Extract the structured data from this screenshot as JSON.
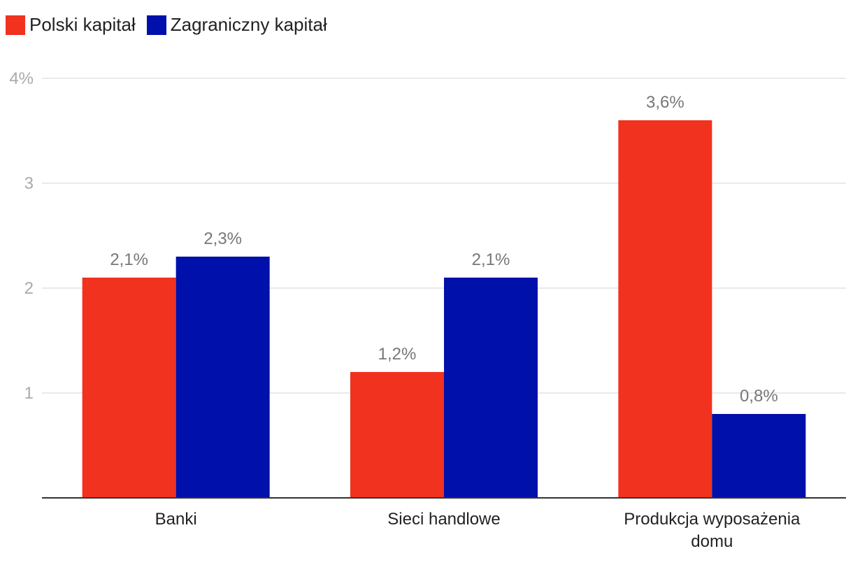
{
  "chart_data": {
    "type": "bar",
    "title": "",
    "xlabel": "",
    "ylabel": "",
    "ylim": [
      0,
      4
    ],
    "y_ticks": [
      {
        "value": 1,
        "label": "1"
      },
      {
        "value": 2,
        "label": "2"
      },
      {
        "value": 3,
        "label": "3"
      },
      {
        "value": 4,
        "label": "4%"
      }
    ],
    "categories": [
      [
        "Banki"
      ],
      [
        "Sieci handlowe"
      ],
      [
        "Produkcja wyposażenia",
        "domu"
      ]
    ],
    "series": [
      {
        "name": "Polski kapitał",
        "color": "#f0321e",
        "values": [
          2.1,
          1.2,
          3.6
        ],
        "labels": [
          "2,1%",
          "1,2%",
          "3,6%"
        ]
      },
      {
        "name": "Zagraniczny kapitał",
        "color": "#0010aa",
        "values": [
          2.3,
          2.1,
          0.8
        ],
        "labels": [
          "2,3%",
          "2,1%",
          "0,8%"
        ]
      }
    ],
    "grid": true,
    "legend": "top-left"
  }
}
